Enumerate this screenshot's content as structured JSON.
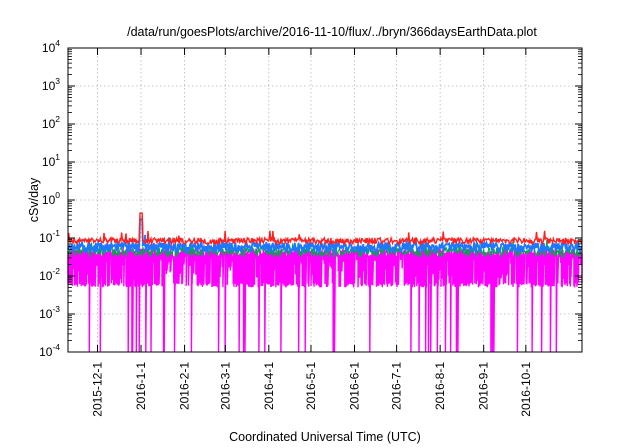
{
  "chart_data": {
    "type": "line",
    "title": "/data/run/goesPlots/archive/2016-11-10/flux/../bryn/366daysEarthData.plot",
    "xlabel": "Coordinated Universal Time (UTC)",
    "ylabel": "cSv/day",
    "yscale": "log",
    "ylim": [
      0.0001,
      10000
    ],
    "y_ticks": [
      {
        "base": "10",
        "exp": "-4",
        "value": 0.0001
      },
      {
        "base": "10",
        "exp": "-3",
        "value": 0.001
      },
      {
        "base": "10",
        "exp": "-2",
        "value": 0.01
      },
      {
        "base": "10",
        "exp": "-1",
        "value": 0.1
      },
      {
        "base": "10",
        "exp": "0",
        "value": 1
      },
      {
        "base": "10",
        "exp": "1",
        "value": 10
      },
      {
        "base": "10",
        "exp": "2",
        "value": 100
      },
      {
        "base": "10",
        "exp": "3",
        "value": 1000
      },
      {
        "base": "10",
        "exp": "4",
        "value": 10000
      }
    ],
    "xlim": [
      "2015-11-10",
      "2016-11-10"
    ],
    "x_ticks": [
      "2015-12-1",
      "2016-1-1",
      "2016-2-1",
      "2016-3-1",
      "2016-4-1",
      "2016-5-1",
      "2016-6-1",
      "2016-7-1",
      "2016-8-1",
      "2016-9-1",
      "2016-10-1"
    ],
    "grid": true,
    "series": [
      {
        "color": "#ff00ff",
        "typical_high": 0.045,
        "floor": 0.005,
        "min_dips": 0.0001
      },
      {
        "color": "#00aa44",
        "typical": 0.045
      },
      {
        "color": "#1e78ff",
        "typical": 0.06
      },
      {
        "color": "#ff2020",
        "typical": 0.085,
        "peak": {
          "x": "2016-1-1",
          "y": 0.45
        }
      }
    ]
  }
}
